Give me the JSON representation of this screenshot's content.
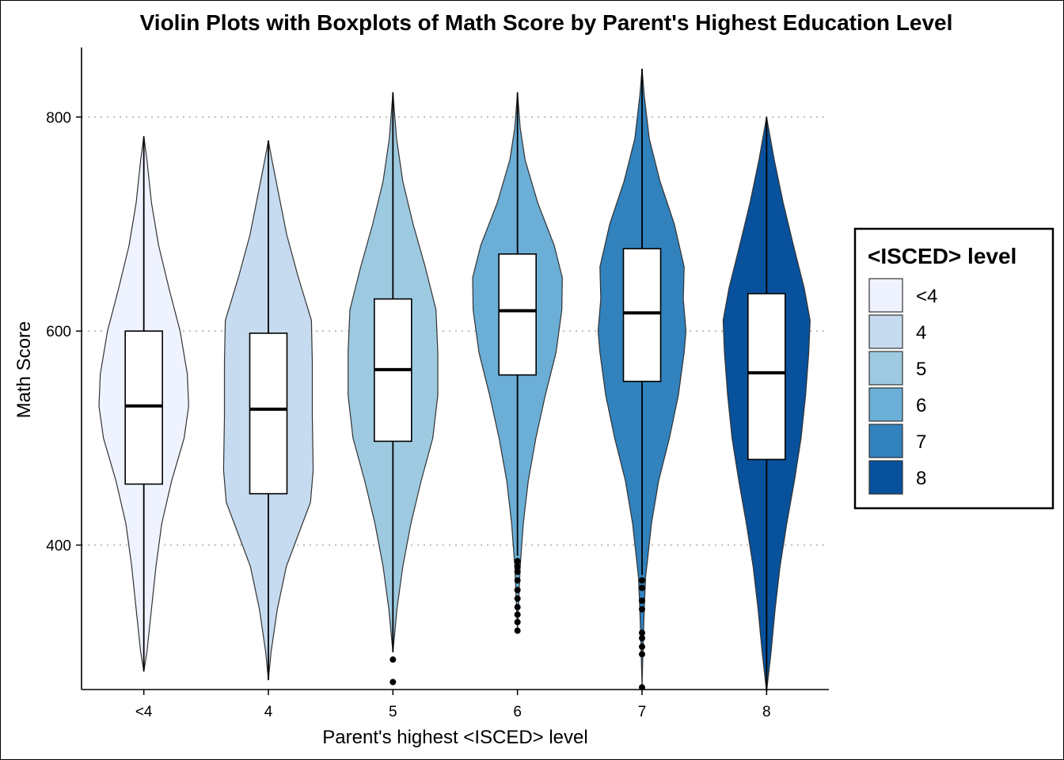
{
  "chart_data": {
    "type": "violin",
    "title": "Violin Plots with Boxplots of Math Score by Parent's Highest Education Level",
    "xlabel": "Parent's highest <ISCED> level",
    "ylabel": "Math Score",
    "ylim": [
      265,
      865
    ],
    "yticks": [
      400,
      600,
      800
    ],
    "grid": "horizontal dotted",
    "legend": {
      "title": "<ISCED> level",
      "placement": "right"
    },
    "categories": [
      "<4",
      "4",
      "5",
      "6",
      "7",
      "8"
    ],
    "colors": [
      "#eff3ff",
      "#c6dbef",
      "#9ecae1",
      "#6baed6",
      "#3182bd",
      "#08519c"
    ],
    "series": [
      {
        "name": "<4",
        "min": 282,
        "q1": 457,
        "median": 530,
        "q3": 600,
        "max": 782,
        "outliers": [],
        "density": [
          [
            282,
            0.0
          ],
          [
            300,
            0.07
          ],
          [
            340,
            0.17
          ],
          [
            380,
            0.27
          ],
          [
            420,
            0.4
          ],
          [
            460,
            0.62
          ],
          [
            500,
            0.9
          ],
          [
            530,
            1.0
          ],
          [
            560,
            0.97
          ],
          [
            600,
            0.81
          ],
          [
            640,
            0.56
          ],
          [
            680,
            0.33
          ],
          [
            720,
            0.17
          ],
          [
            760,
            0.07
          ],
          [
            782,
            0.0
          ]
        ]
      },
      {
        "name": "4",
        "min": 274,
        "q1": 448,
        "median": 527,
        "q3": 598,
        "max": 778,
        "outliers": [],
        "density": [
          [
            274,
            0.0
          ],
          [
            300,
            0.06
          ],
          [
            340,
            0.2
          ],
          [
            380,
            0.4
          ],
          [
            420,
            0.76
          ],
          [
            440,
            0.94
          ],
          [
            470,
            1.0
          ],
          [
            520,
            0.98
          ],
          [
            570,
            0.98
          ],
          [
            610,
            0.96
          ],
          [
            650,
            0.67
          ],
          [
            690,
            0.41
          ],
          [
            730,
            0.22
          ],
          [
            760,
            0.08
          ],
          [
            778,
            0.0
          ]
        ]
      },
      {
        "name": "5",
        "min": 300,
        "q1": 497,
        "median": 564,
        "q3": 630,
        "max": 823,
        "outliers": [
          293,
          272
        ],
        "density": [
          [
            300,
            0.0
          ],
          [
            340,
            0.09
          ],
          [
            380,
            0.22
          ],
          [
            420,
            0.4
          ],
          [
            460,
            0.63
          ],
          [
            500,
            0.89
          ],
          [
            540,
            1.0
          ],
          [
            580,
            1.0
          ],
          [
            620,
            0.96
          ],
          [
            660,
            0.72
          ],
          [
            700,
            0.45
          ],
          [
            740,
            0.22
          ],
          [
            780,
            0.08
          ],
          [
            823,
            0.0
          ]
        ]
      },
      {
        "name": "6",
        "min": 390,
        "q1": 559,
        "median": 619,
        "q3": 672,
        "max": 823,
        "outliers": [
          385,
          380,
          375,
          367,
          358,
          350,
          342,
          335,
          328,
          320
        ],
        "density": [
          [
            320,
            0.0
          ],
          [
            340,
            0.02
          ],
          [
            360,
            0.04
          ],
          [
            380,
            0.06
          ],
          [
            420,
            0.13
          ],
          [
            460,
            0.24
          ],
          [
            500,
            0.41
          ],
          [
            540,
            0.62
          ],
          [
            580,
            0.86
          ],
          [
            620,
            0.99
          ],
          [
            650,
            1.0
          ],
          [
            680,
            0.82
          ],
          [
            720,
            0.45
          ],
          [
            760,
            0.17
          ],
          [
            790,
            0.06
          ],
          [
            823,
            0.0
          ]
        ]
      },
      {
        "name": "7",
        "min": 372,
        "q1": 553,
        "median": 617,
        "q3": 677,
        "max": 845,
        "outliers": [
          367,
          360,
          348,
          340,
          318,
          313,
          305,
          298,
          267
        ],
        "density": [
          [
            267,
            0.0
          ],
          [
            300,
            0.02
          ],
          [
            340,
            0.05
          ],
          [
            370,
            0.08
          ],
          [
            420,
            0.21
          ],
          [
            460,
            0.37
          ],
          [
            500,
            0.61
          ],
          [
            540,
            0.81
          ],
          [
            580,
            0.94
          ],
          [
            600,
            0.98
          ],
          [
            630,
            0.92
          ],
          [
            660,
            0.94
          ],
          [
            700,
            0.72
          ],
          [
            740,
            0.4
          ],
          [
            780,
            0.16
          ],
          [
            820,
            0.05
          ],
          [
            845,
            0.0
          ]
        ]
      },
      {
        "name": "8",
        "min": 263,
        "q1": 480,
        "median": 561,
        "q3": 635,
        "max": 800,
        "outliers": [],
        "density": [
          [
            263,
            0.0
          ],
          [
            300,
            0.1
          ],
          [
            340,
            0.19
          ],
          [
            380,
            0.3
          ],
          [
            420,
            0.45
          ],
          [
            460,
            0.62
          ],
          [
            500,
            0.77
          ],
          [
            540,
            0.87
          ],
          [
            580,
            0.94
          ],
          [
            610,
            0.97
          ],
          [
            640,
            0.84
          ],
          [
            680,
            0.6
          ],
          [
            720,
            0.37
          ],
          [
            760,
            0.17
          ],
          [
            800,
            0.0
          ]
        ]
      }
    ]
  }
}
